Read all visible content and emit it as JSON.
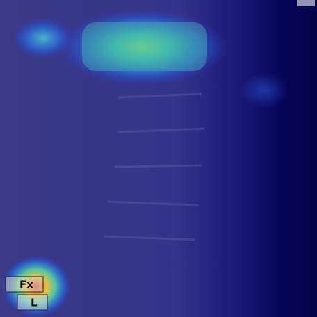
{
  "markers": {
    "fracture": "Fx",
    "side": "L"
  }
}
